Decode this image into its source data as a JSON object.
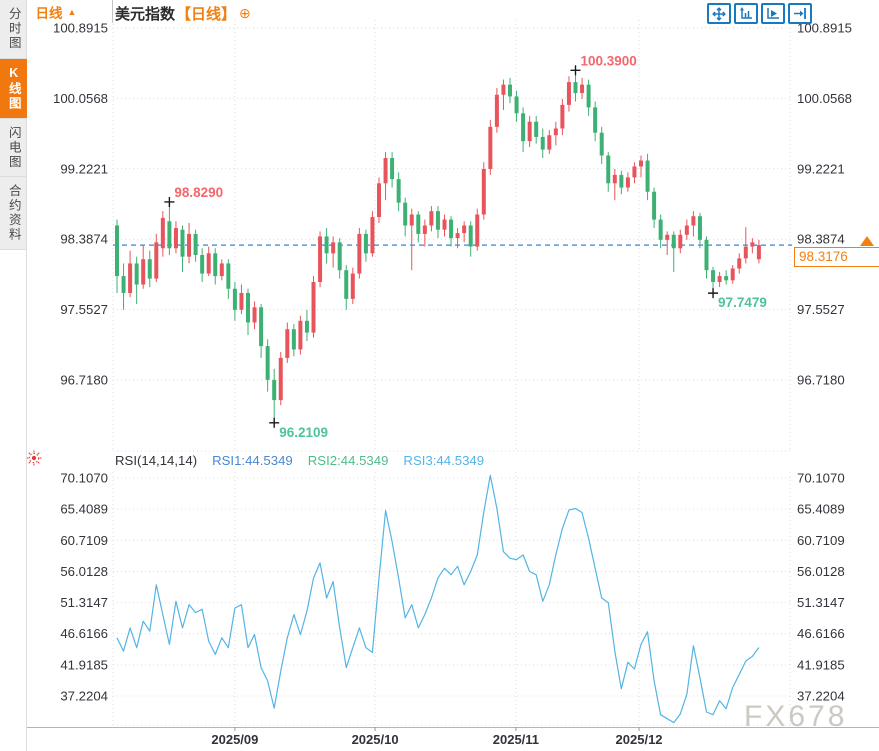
{
  "header": {
    "title": "美元指数",
    "period_tag": "【日线】",
    "add_icon": "⊕"
  },
  "sidebar": {
    "items": [
      {
        "label": "分时图",
        "active": false
      },
      {
        "label": "K线图",
        "active": true
      },
      {
        "label": "闪电图",
        "active": false
      },
      {
        "label": "合约资料",
        "active": false
      }
    ]
  },
  "toolbar": {
    "icons": [
      "pan-move-icon",
      "scale-left-axis-icon",
      "scale-right-axis-icon",
      "go-to-latest-icon"
    ]
  },
  "bottom_bar": {
    "period_label": "日线",
    "arrow": "▲"
  },
  "watermark": {
    "text": "FX678"
  },
  "colors": {
    "up": "#e8545c",
    "down": "#3cb173",
    "accent_orange": "#f28011",
    "dashed_line": "#2e86e0",
    "rsi_line": "#54b4e4",
    "rsi1_label": "#4a87d3",
    "rsi2_label": "#50bd88",
    "rsi3_label": "#54b4e4",
    "annotation_high": "#f4666c",
    "annotation_low": "#4ec29e",
    "axis_text": "#33333c",
    "grid": "#dcdcdc",
    "watermark": "#ccc9c3",
    "toolbar_icon": "#1879c0",
    "sun_icon": "#e53935",
    "marker_cross": "#1a1a1a",
    "month_text": "#32323a"
  },
  "chart_data": [
    {
      "type": "candlestick",
      "title": "美元指数【日线】",
      "y_ticks": [
        100.8915,
        100.0568,
        99.2221,
        98.3874,
        97.5527,
        96.718
      ],
      "axis_range": [
        95.9236,
        100.9864
      ],
      "x_ticks": {
        "labels": [
          "2025/09",
          "2025/10",
          "2025/11",
          "2025/12"
        ],
        "positions": [
          18,
          39.4,
          60.9,
          79.7
        ]
      },
      "last_price": 98.3176,
      "last_price_label": "98.3176",
      "grid": true,
      "annotations": [
        {
          "index": 8,
          "type": "high",
          "label": "98.8290"
        },
        {
          "index": 24,
          "type": "low",
          "label": "96.2109"
        },
        {
          "index": 70,
          "type": "high",
          "label": "100.3900"
        },
        {
          "index": 91,
          "type": "low",
          "label": "97.7479"
        }
      ],
      "ohlc": [
        [
          98.55,
          98.62,
          97.75,
          97.95
        ],
        [
          97.95,
          98.1,
          97.55,
          97.75
        ],
        [
          97.75,
          98.25,
          97.7,
          98.1
        ],
        [
          98.1,
          98.18,
          97.62,
          97.85
        ],
        [
          97.85,
          98.32,
          97.8,
          98.15
        ],
        [
          98.15,
          98.25,
          97.82,
          97.92
        ],
        [
          97.92,
          98.45,
          97.88,
          98.35
        ],
        [
          98.28,
          98.72,
          98.18,
          98.64
        ],
        [
          98.6,
          98.829,
          98.2,
          98.28
        ],
        [
          98.28,
          98.6,
          98.22,
          98.52
        ],
        [
          98.5,
          98.55,
          98.0,
          98.18
        ],
        [
          98.18,
          98.58,
          98.1,
          98.45
        ],
        [
          98.45,
          98.5,
          98.12,
          98.2
        ],
        [
          98.2,
          98.28,
          97.88,
          97.98
        ],
        [
          97.98,
          98.3,
          97.95,
          98.22
        ],
        [
          98.22,
          98.28,
          97.85,
          97.95
        ],
        [
          97.95,
          98.15,
          97.9,
          98.1
        ],
        [
          98.1,
          98.15,
          97.68,
          97.8
        ],
        [
          97.8,
          97.88,
          97.42,
          97.55
        ],
        [
          97.55,
          97.85,
          97.5,
          97.75
        ],
        [
          97.75,
          97.8,
          97.25,
          97.4
        ],
        [
          97.4,
          97.65,
          97.32,
          97.58
        ],
        [
          97.58,
          97.62,
          96.98,
          97.12
        ],
        [
          97.12,
          97.2,
          96.58,
          96.72
        ],
        [
          96.72,
          96.85,
          96.2109,
          96.48
        ],
        [
          96.48,
          97.05,
          96.42,
          96.98
        ],
        [
          96.98,
          97.4,
          96.92,
          97.32
        ],
        [
          97.32,
          97.38,
          97.0,
          97.08
        ],
        [
          97.08,
          97.48,
          97.02,
          97.42
        ],
        [
          97.42,
          97.55,
          97.18,
          97.28
        ],
        [
          97.28,
          97.95,
          97.22,
          97.88
        ],
        [
          97.88,
          98.48,
          97.82,
          98.42
        ],
        [
          98.42,
          98.52,
          98.1,
          98.22
        ],
        [
          98.22,
          98.42,
          98.05,
          98.35
        ],
        [
          98.35,
          98.4,
          97.92,
          98.02
        ],
        [
          98.02,
          98.08,
          97.55,
          97.68
        ],
        [
          97.68,
          98.05,
          97.62,
          97.98
        ],
        [
          97.98,
          98.52,
          97.92,
          98.45
        ],
        [
          98.45,
          98.5,
          98.12,
          98.22
        ],
        [
          98.22,
          98.72,
          98.18,
          98.65
        ],
        [
          98.65,
          99.12,
          98.58,
          99.05
        ],
        [
          99.05,
          99.42,
          98.85,
          99.35
        ],
        [
          99.35,
          99.42,
          99.0,
          99.1
        ],
        [
          99.1,
          99.18,
          98.72,
          98.82
        ],
        [
          98.82,
          98.88,
          98.42,
          98.55
        ],
        [
          98.55,
          98.75,
          98.02,
          98.68
        ],
        [
          98.68,
          98.72,
          98.35,
          98.45
        ],
        [
          98.45,
          98.62,
          98.3,
          98.55
        ],
        [
          98.55,
          98.78,
          98.48,
          98.72
        ],
        [
          98.72,
          98.78,
          98.4,
          98.5
        ],
        [
          98.5,
          98.68,
          98.42,
          98.62
        ],
        [
          98.62,
          98.66,
          98.3,
          98.4
        ],
        [
          98.4,
          98.52,
          98.28,
          98.46
        ],
        [
          98.46,
          98.6,
          98.35,
          98.55
        ],
        [
          98.55,
          98.6,
          98.18,
          98.3
        ],
        [
          98.3,
          98.75,
          98.25,
          98.68
        ],
        [
          98.68,
          99.3,
          98.62,
          99.22
        ],
        [
          99.22,
          99.8,
          99.15,
          99.72
        ],
        [
          99.72,
          100.18,
          99.65,
          100.1
        ],
        [
          100.1,
          100.28,
          99.92,
          100.22
        ],
        [
          100.22,
          100.3,
          100.0,
          100.08
        ],
        [
          100.08,
          100.15,
          99.78,
          99.88
        ],
        [
          99.88,
          99.95,
          99.42,
          99.55
        ],
        [
          99.55,
          99.85,
          99.48,
          99.78
        ],
        [
          99.78,
          99.85,
          99.52,
          99.6
        ],
        [
          99.6,
          99.7,
          99.35,
          99.45
        ],
        [
          99.45,
          99.68,
          99.4,
          99.62
        ],
        [
          99.62,
          99.78,
          99.5,
          99.7
        ],
        [
          99.7,
          100.05,
          99.62,
          99.98
        ],
        [
          99.98,
          100.32,
          99.9,
          100.25
        ],
        [
          100.25,
          100.39,
          100.02,
          100.12
        ],
        [
          100.12,
          100.3,
          100.05,
          100.22
        ],
        [
          100.22,
          100.28,
          99.85,
          99.95
        ],
        [
          99.95,
          100.02,
          99.55,
          99.65
        ],
        [
          99.65,
          99.72,
          99.28,
          99.38
        ],
        [
          99.38,
          99.42,
          98.95,
          99.05
        ],
        [
          99.05,
          99.22,
          98.85,
          99.15
        ],
        [
          99.15,
          99.2,
          98.92,
          99.0
        ],
        [
          99.0,
          99.18,
          98.95,
          99.12
        ],
        [
          99.12,
          99.3,
          99.05,
          99.25
        ],
        [
          99.25,
          99.38,
          99.12,
          99.32
        ],
        [
          99.32,
          99.4,
          98.85,
          98.95
        ],
        [
          98.95,
          99.0,
          98.52,
          98.62
        ],
        [
          98.62,
          98.68,
          98.28,
          98.38
        ],
        [
          98.38,
          98.48,
          98.2,
          98.44
        ],
        [
          98.44,
          98.48,
          98.0,
          98.28
        ],
        [
          98.28,
          98.5,
          98.22,
          98.44
        ],
        [
          98.44,
          98.62,
          98.38,
          98.55
        ],
        [
          98.55,
          98.72,
          98.42,
          98.66
        ],
        [
          98.66,
          98.7,
          98.28,
          98.38
        ],
        [
          98.38,
          98.42,
          97.92,
          98.02
        ],
        [
          98.02,
          98.06,
          97.7479,
          97.88
        ],
        [
          97.88,
          98.0,
          97.82,
          97.95
        ],
        [
          97.95,
          98.02,
          97.85,
          97.9
        ],
        [
          97.9,
          98.08,
          97.86,
          98.04
        ],
        [
          98.04,
          98.22,
          97.98,
          98.16
        ],
        [
          98.16,
          98.53,
          98.1,
          98.3
        ],
        [
          98.3,
          98.4,
          98.22,
          98.35
        ],
        [
          98.15,
          98.38,
          98.1,
          98.3176
        ]
      ]
    },
    {
      "type": "line",
      "params_label": "RSI(14,14,14)",
      "legend": [
        {
          "text": "RSI1:44.5349",
          "value": 44.5349
        },
        {
          "text": "RSI2:44.5349",
          "value": 44.5349
        },
        {
          "text": "RSI3:44.5349",
          "value": 44.5349
        }
      ],
      "y_ticks": [
        70.107,
        65.4089,
        60.7109,
        56.0128,
        51.3147,
        46.6166,
        41.9185,
        37.2204
      ],
      "axis_range": [
        32.845,
        71.012
      ],
      "grid": true,
      "values": [
        46,
        44,
        47.5,
        44.5,
        48.5,
        47,
        54,
        49.5,
        45,
        51.5,
        47.5,
        51,
        49.8,
        50.3,
        45.5,
        43.5,
        46,
        44.5,
        50.5,
        51,
        44.5,
        46.5,
        41.5,
        39.5,
        35.4,
        41,
        46,
        49.5,
        46.5,
        50,
        55,
        57.3,
        52,
        54.5,
        47.5,
        41.5,
        44.5,
        47.5,
        44.5,
        43.8,
        55,
        65.2,
        60.5,
        55,
        49,
        51,
        47.5,
        49.5,
        52,
        55,
        56.5,
        55.5,
        56.8,
        54,
        56,
        58.5,
        65,
        70.5,
        65.5,
        59,
        58,
        57.8,
        58.5,
        56,
        55.5,
        51.5,
        54,
        58.5,
        62.5,
        65.3,
        65.5,
        64.9,
        61,
        56.5,
        52,
        51.3,
        44,
        38.3,
        42.3,
        41.3,
        45,
        46.9,
        39.5,
        34.4,
        33.8,
        33.2,
        34.5,
        37.5,
        44.8,
        40,
        34.8,
        34.4,
        36.5,
        35.3,
        38.5,
        40.5,
        42.5,
        43.2,
        44.5349
      ]
    }
  ]
}
